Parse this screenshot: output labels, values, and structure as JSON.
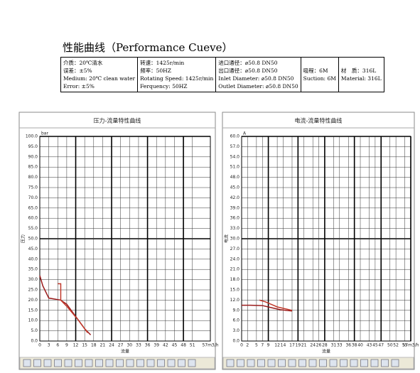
{
  "header": {
    "title": "性能曲线（Performance Cueve）",
    "table": {
      "columns": [
        [
          "介质：20℃清水",
          "误差：±5%",
          "Medium: 20℃ clean water",
          "Error: ±5%"
        ],
        [
          "转速：1425r/min",
          "频率：50HZ",
          "Rotating Speed: 1425r/min",
          "Ferquency: 50HZ"
        ],
        [
          "进口通径：⌀50.8 DN50",
          "出口通径：⌀50.8 DN50",
          "Inlet Diameter: ⌀50.8 DN50",
          "Outlet Diameter: ⌀50.8 DN50"
        ],
        [
          "吸程：6M",
          "Suction: 6M"
        ],
        [
          "材　质：316L",
          "Material: 316L"
        ]
      ]
    }
  },
  "chart_data": [
    {
      "type": "line",
      "title": "压力-流量特性曲线",
      "ylabel": "压力",
      "yunit": "bar",
      "xlabel": "流量",
      "grid": true,
      "xlim": [
        0,
        57
      ],
      "ylim": [
        0,
        100
      ],
      "xticks": [
        0,
        3,
        6,
        9,
        12,
        15,
        18,
        21,
        24,
        27,
        30,
        33,
        36,
        39,
        42,
        45,
        48,
        51,
        {
          "value": 57,
          "label": "57m3/h"
        }
      ],
      "yticks": [
        {
          "value": 0,
          "label": "0.0"
        },
        {
          "value": 5,
          "label": "5.0"
        },
        {
          "value": 10,
          "label": "10.0"
        },
        {
          "value": 15,
          "label": "15.0"
        },
        {
          "value": 20,
          "label": "20.0"
        },
        {
          "value": 25,
          "label": "25.0"
        },
        {
          "value": 30,
          "label": "30.0"
        },
        {
          "value": 35,
          "label": "35.0"
        },
        {
          "value": 40,
          "label": "40.0"
        },
        {
          "value": 45,
          "label": "45.0"
        },
        {
          "value": 50,
          "label": "50.0"
        },
        {
          "value": 55,
          "label": "55.0"
        },
        {
          "value": 60,
          "label": "60.0"
        },
        {
          "value": 65,
          "label": "65.0"
        },
        {
          "value": 70,
          "label": "70.0"
        },
        {
          "value": 75,
          "label": "75.0"
        },
        {
          "value": 80,
          "label": "80.0"
        },
        {
          "value": 85,
          "label": "85.0"
        },
        {
          "value": 90,
          "label": "90.0"
        },
        {
          "value": 95,
          "label": "95.0"
        },
        {
          "value": 100,
          "label": "100.0"
        }
      ],
      "series": [
        {
          "color": "#9b1c1c",
          "x": [
            0,
            1,
            3,
            7,
            9,
            12,
            15,
            17
          ],
          "values": [
            32,
            27,
            21,
            20,
            18,
            12,
            6,
            3
          ]
        },
        {
          "color": "#c0392b",
          "x": [
            6,
            7,
            7,
            9,
            13,
            16
          ],
          "values": [
            28,
            28,
            20,
            17,
            10,
            4
          ]
        }
      ]
    },
    {
      "type": "line",
      "title": "电流-流量特性曲线",
      "ylabel": "电流",
      "yunit": "A",
      "xlabel": "流量",
      "grid": true,
      "xlim": [
        0,
        57
      ],
      "ylim": [
        0,
        60
      ],
      "xticks": [
        0,
        2,
        5,
        7,
        9,
        12,
        14,
        17,
        19,
        21,
        24,
        26,
        28,
        31,
        33,
        36,
        38,
        40,
        43,
        45,
        47,
        50,
        52,
        55,
        {
          "value": 57,
          "label": "57m3/h"
        }
      ],
      "yticks": [
        {
          "value": 0,
          "label": "0.0"
        },
        {
          "value": 3,
          "label": "3.0"
        },
        {
          "value": 6,
          "label": "6.0"
        },
        {
          "value": 9,
          "label": "9.0"
        },
        {
          "value": 12,
          "label": "12.0"
        },
        {
          "value": 15,
          "label": "15.0"
        },
        {
          "value": 18,
          "label": "18.0"
        },
        {
          "value": 21,
          "label": "21.0"
        },
        {
          "value": 24,
          "label": "24.0"
        },
        {
          "value": 27,
          "label": "27.0"
        },
        {
          "value": 30,
          "label": "30.0"
        },
        {
          "value": 33,
          "label": "33.0"
        },
        {
          "value": 36,
          "label": "36.0"
        },
        {
          "value": 39,
          "label": "39.0"
        },
        {
          "value": 42,
          "label": "42.0"
        },
        {
          "value": 45,
          "label": "45.0"
        },
        {
          "value": 48,
          "label": "48.0"
        },
        {
          "value": 51,
          "label": "51.0"
        },
        {
          "value": 54,
          "label": "54.0"
        },
        {
          "value": 57,
          "label": "57.0"
        },
        {
          "value": 60,
          "label": "60.0"
        }
      ],
      "series": [
        {
          "color": "#9b1c1c",
          "x": [
            0,
            3,
            7,
            10,
            13,
            17
          ],
          "values": [
            10.5,
            10.5,
            10.4,
            9.8,
            9.2,
            8.8
          ]
        },
        {
          "color": "#c0392b",
          "x": [
            6,
            8,
            12,
            17
          ],
          "values": [
            12,
            11.5,
            10,
            9
          ]
        }
      ]
    }
  ]
}
